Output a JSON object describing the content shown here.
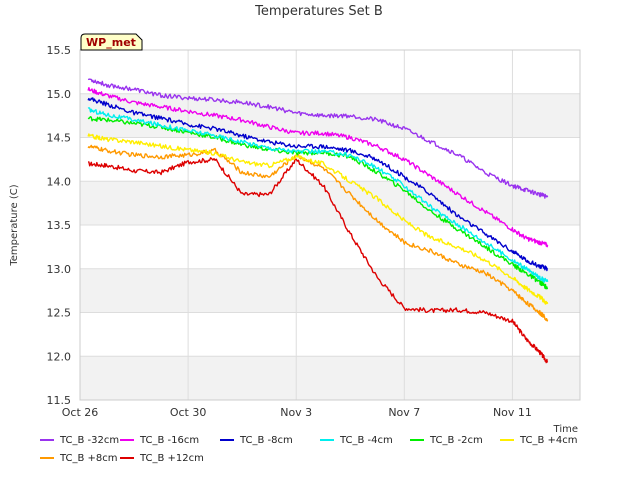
{
  "chart_data": {
    "type": "line",
    "title": "Temperatures Set B",
    "xlabel": "Time",
    "ylabel": "Temperature (C)",
    "badge": "WP_met",
    "xlim": [
      0,
      18.5
    ],
    "ylim": [
      11.5,
      15.5
    ],
    "y_ticks": [
      11.5,
      12.0,
      12.5,
      13.0,
      13.5,
      14.0,
      14.5,
      15.0,
      15.5
    ],
    "x_ticks": [
      {
        "day": 0,
        "label": "Oct 26"
      },
      {
        "day": 4,
        "label": "Oct 30"
      },
      {
        "day": 8,
        "label": "Nov 3"
      },
      {
        "day": 12,
        "label": "Nov 7"
      },
      {
        "day": 16,
        "label": "Nov 11"
      }
    ],
    "grid": true,
    "legend_position": "bottom",
    "series": [
      {
        "name": "TC_B -32cm",
        "color": "#9933ee",
        "x": [
          0.3,
          1,
          2,
          3,
          4,
          5,
          6,
          7,
          8,
          9,
          10,
          11,
          12,
          13,
          14,
          15,
          16,
          16.5,
          17,
          17.3
        ],
        "y": [
          15.17,
          15.1,
          15.05,
          14.98,
          14.95,
          14.93,
          14.9,
          14.85,
          14.78,
          14.75,
          14.75,
          14.7,
          14.6,
          14.45,
          14.3,
          14.1,
          13.95,
          13.9,
          13.85,
          13.82
        ]
      },
      {
        "name": "TC_B -16cm",
        "color": "#ee00ee",
        "x": [
          0.3,
          1,
          2,
          3,
          4,
          5,
          6,
          7,
          8,
          9,
          10,
          11,
          12,
          13,
          14,
          15,
          16,
          16.5,
          17,
          17.3
        ],
        "y": [
          15.05,
          14.98,
          14.9,
          14.85,
          14.8,
          14.75,
          14.7,
          14.62,
          14.55,
          14.55,
          14.5,
          14.4,
          14.25,
          14.05,
          13.85,
          13.65,
          13.45,
          13.35,
          13.3,
          13.27
        ]
      },
      {
        "name": "TC_B -8cm",
        "color": "#0000cc",
        "x": [
          0.3,
          1,
          2,
          3,
          4,
          5,
          6,
          7,
          8,
          9,
          10,
          11,
          12,
          13,
          14,
          15,
          16,
          16.5,
          17,
          17.3
        ],
        "y": [
          14.95,
          14.88,
          14.78,
          14.72,
          14.65,
          14.6,
          14.52,
          14.45,
          14.4,
          14.4,
          14.35,
          14.25,
          14.05,
          13.85,
          13.6,
          13.4,
          13.2,
          13.1,
          13.03,
          13.0
        ]
      },
      {
        "name": "TC_B -4cm",
        "color": "#00eeee",
        "x": [
          0.3,
          1,
          2,
          3,
          4,
          5,
          6,
          7,
          8,
          9,
          10,
          11,
          12,
          13,
          14,
          15,
          16,
          16.5,
          17,
          17.3
        ],
        "y": [
          14.82,
          14.76,
          14.7,
          14.64,
          14.58,
          14.52,
          14.45,
          14.38,
          14.34,
          14.34,
          14.3,
          14.15,
          13.95,
          13.7,
          13.5,
          13.3,
          13.1,
          13.0,
          12.9,
          12.85
        ]
      },
      {
        "name": "TC_B -2cm",
        "color": "#00ee00",
        "x": [
          0.3,
          1,
          2,
          3,
          4,
          5,
          6,
          7,
          8,
          9,
          10,
          11,
          12,
          13,
          14,
          15,
          16,
          16.5,
          17,
          17.3
        ],
        "y": [
          14.72,
          14.7,
          14.66,
          14.62,
          14.56,
          14.5,
          14.42,
          14.36,
          14.32,
          14.33,
          14.28,
          14.1,
          13.9,
          13.65,
          13.45,
          13.25,
          13.05,
          12.95,
          12.85,
          12.78
        ]
      },
      {
        "name": "TC_B +4cm",
        "color": "#ffee00",
        "x": [
          0.3,
          1,
          2,
          3,
          4,
          5,
          6,
          7,
          8,
          9,
          10,
          11,
          12,
          13,
          14,
          15,
          16,
          16.5,
          17,
          17.3
        ],
        "y": [
          14.52,
          14.48,
          14.45,
          14.4,
          14.36,
          14.32,
          14.22,
          14.18,
          14.28,
          14.2,
          14.0,
          13.8,
          13.55,
          13.35,
          13.25,
          13.1,
          12.9,
          12.78,
          12.68,
          12.6
        ]
      },
      {
        "name": "TC_B +8cm",
        "color": "#ff9900",
        "x": [
          0.3,
          1,
          2,
          3,
          4,
          5,
          6,
          7,
          8,
          9,
          10,
          11,
          12,
          13,
          14,
          15,
          16,
          16.5,
          17,
          17.3
        ],
        "y": [
          14.4,
          14.35,
          14.3,
          14.28,
          14.3,
          14.35,
          14.1,
          14.05,
          14.3,
          14.15,
          13.85,
          13.55,
          13.3,
          13.2,
          13.05,
          12.95,
          12.75,
          12.62,
          12.5,
          12.42
        ]
      },
      {
        "name": "TC_B +12cm",
        "color": "#dd0000",
        "x": [
          0.3,
          1,
          2,
          3,
          4,
          5,
          6,
          7,
          8,
          9,
          10,
          11,
          12,
          13,
          14,
          15,
          16,
          16.5,
          17,
          17.3
        ],
        "y": [
          14.2,
          14.18,
          14.12,
          14.1,
          14.22,
          14.25,
          13.85,
          13.85,
          14.25,
          13.95,
          13.4,
          12.9,
          12.55,
          12.52,
          12.53,
          12.5,
          12.4,
          12.2,
          12.05,
          11.93
        ]
      }
    ]
  }
}
